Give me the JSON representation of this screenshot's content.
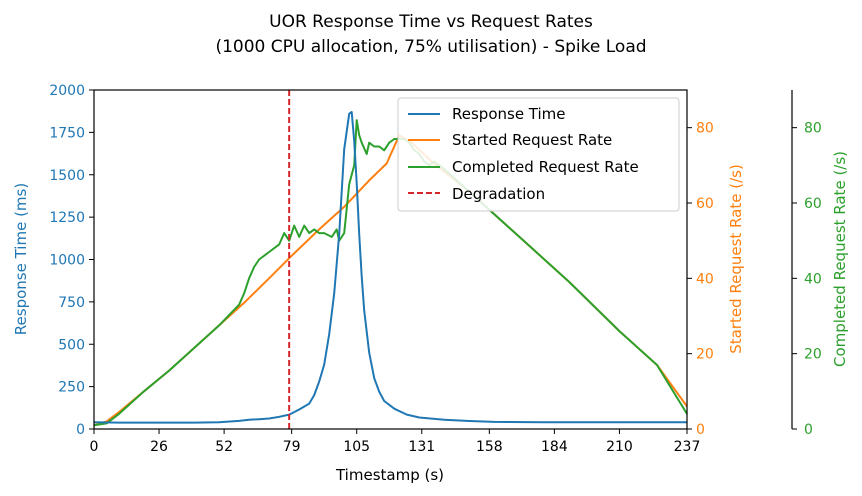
{
  "chart_data": {
    "type": "line",
    "title_line1": "UOR Response Time vs Request Rates",
    "title_line2": "(1000 CPU allocation, 75% utilisation) - Spike Load",
    "xlabel": "Timestamp (s)",
    "ylabel_left": "Response Time (ms)",
    "ylabel_right1": "Started Request Rate (/s)",
    "ylabel_right2": "Completed Request Rate (/s)",
    "xlim": [
      0,
      237
    ],
    "ylim_left": [
      0,
      2000
    ],
    "ylim_right": [
      0,
      90
    ],
    "x_ticks": [
      "0",
      "26",
      "52",
      "79",
      "105",
      "131",
      "158",
      "184",
      "210",
      "237"
    ],
    "x_tick_values": [
      0,
      26,
      52,
      79,
      105,
      131,
      158,
      184,
      210,
      237
    ],
    "y_ticks_left": [
      "0",
      "250",
      "500",
      "750",
      "1000",
      "1250",
      "1500",
      "1750",
      "2000"
    ],
    "y_tick_values_left": [
      0,
      250,
      500,
      750,
      1000,
      1250,
      1500,
      1750,
      2000
    ],
    "y_ticks_right": [
      "0",
      "20",
      "40",
      "60",
      "80"
    ],
    "y_tick_values_right": [
      0,
      20,
      40,
      60,
      80
    ],
    "grid": false,
    "legend_position": "top-right",
    "colors": {
      "response": "#1f77b4",
      "started": "#ff7f0e",
      "completed": "#2ca02c",
      "degradation": "#d62728"
    },
    "degradation_x": 78,
    "series": [
      {
        "name": "Response Time",
        "axis": "left",
        "color": "#1f77b4",
        "points": [
          [
            0,
            40
          ],
          [
            10,
            38
          ],
          [
            20,
            38
          ],
          [
            30,
            38
          ],
          [
            40,
            38
          ],
          [
            50,
            40
          ],
          [
            58,
            48
          ],
          [
            62,
            55
          ],
          [
            66,
            58
          ],
          [
            70,
            62
          ],
          [
            74,
            72
          ],
          [
            78,
            85
          ],
          [
            82,
            115
          ],
          [
            86,
            150
          ],
          [
            88,
            200
          ],
          [
            90,
            280
          ],
          [
            92,
            380
          ],
          [
            94,
            560
          ],
          [
            96,
            800
          ],
          [
            98,
            1150
          ],
          [
            100,
            1650
          ],
          [
            102,
            1860
          ],
          [
            103,
            1870
          ],
          [
            104,
            1700
          ],
          [
            105,
            1450
          ],
          [
            106,
            1150
          ],
          [
            107,
            900
          ],
          [
            108,
            700
          ],
          [
            110,
            450
          ],
          [
            112,
            300
          ],
          [
            114,
            220
          ],
          [
            116,
            165
          ],
          [
            120,
            120
          ],
          [
            125,
            85
          ],
          [
            130,
            68
          ],
          [
            140,
            55
          ],
          [
            150,
            47
          ],
          [
            160,
            42
          ],
          [
            180,
            40
          ],
          [
            200,
            40
          ],
          [
            220,
            40
          ],
          [
            237,
            40
          ]
        ]
      },
      {
        "name": "Started Request Rate",
        "axis": "right",
        "color": "#ff7f0e",
        "points": [
          [
            0,
            1
          ],
          [
            5,
            2
          ],
          [
            10,
            4.5
          ],
          [
            20,
            10
          ],
          [
            30,
            15.5
          ],
          [
            40,
            21.5
          ],
          [
            50,
            27.5
          ],
          [
            60,
            33.5
          ],
          [
            70,
            40
          ],
          [
            79,
            46
          ],
          [
            90,
            53
          ],
          [
            100,
            59
          ],
          [
            110,
            66
          ],
          [
            117,
            70.5
          ],
          [
            122,
            78
          ],
          [
            127,
            76
          ],
          [
            135,
            71
          ],
          [
            150,
            63
          ],
          [
            170,
            51
          ],
          [
            190,
            39
          ],
          [
            210,
            26
          ],
          [
            225,
            17
          ],
          [
            237,
            6
          ]
        ]
      },
      {
        "name": "Completed Request Rate",
        "axis": "right",
        "color": "#2ca02c",
        "points": [
          [
            0,
            1
          ],
          [
            5,
            1.5
          ],
          [
            10,
            4
          ],
          [
            20,
            10
          ],
          [
            30,
            15.5
          ],
          [
            40,
            21.5
          ],
          [
            50,
            27.5
          ],
          [
            58,
            33
          ],
          [
            60,
            36
          ],
          [
            62,
            40
          ],
          [
            64,
            43
          ],
          [
            66,
            45
          ],
          [
            70,
            47
          ],
          [
            74,
            49
          ],
          [
            76,
            52
          ],
          [
            78,
            50
          ],
          [
            80,
            54
          ],
          [
            82,
            51
          ],
          [
            84,
            54
          ],
          [
            86,
            52
          ],
          [
            88,
            53
          ],
          [
            90,
            52
          ],
          [
            92,
            52
          ],
          [
            95,
            51
          ],
          [
            97,
            53
          ],
          [
            98,
            50
          ],
          [
            100,
            52
          ],
          [
            102,
            65
          ],
          [
            104,
            70
          ],
          [
            105,
            82
          ],
          [
            106,
            78
          ],
          [
            107,
            76
          ],
          [
            109,
            73
          ],
          [
            110,
            76
          ],
          [
            112,
            75
          ],
          [
            114,
            75
          ],
          [
            116,
            74
          ],
          [
            118,
            76
          ],
          [
            120,
            77
          ],
          [
            122,
            77
          ],
          [
            124,
            77
          ],
          [
            126,
            76
          ],
          [
            128,
            74
          ],
          [
            130,
            73
          ],
          [
            132,
            71
          ],
          [
            134,
            70
          ],
          [
            136,
            71
          ],
          [
            140,
            69
          ],
          [
            150,
            63
          ],
          [
            170,
            51
          ],
          [
            190,
            39
          ],
          [
            210,
            26
          ],
          [
            225,
            17
          ],
          [
            237,
            4
          ]
        ]
      }
    ],
    "legend_degradation_label": "Degradation"
  }
}
